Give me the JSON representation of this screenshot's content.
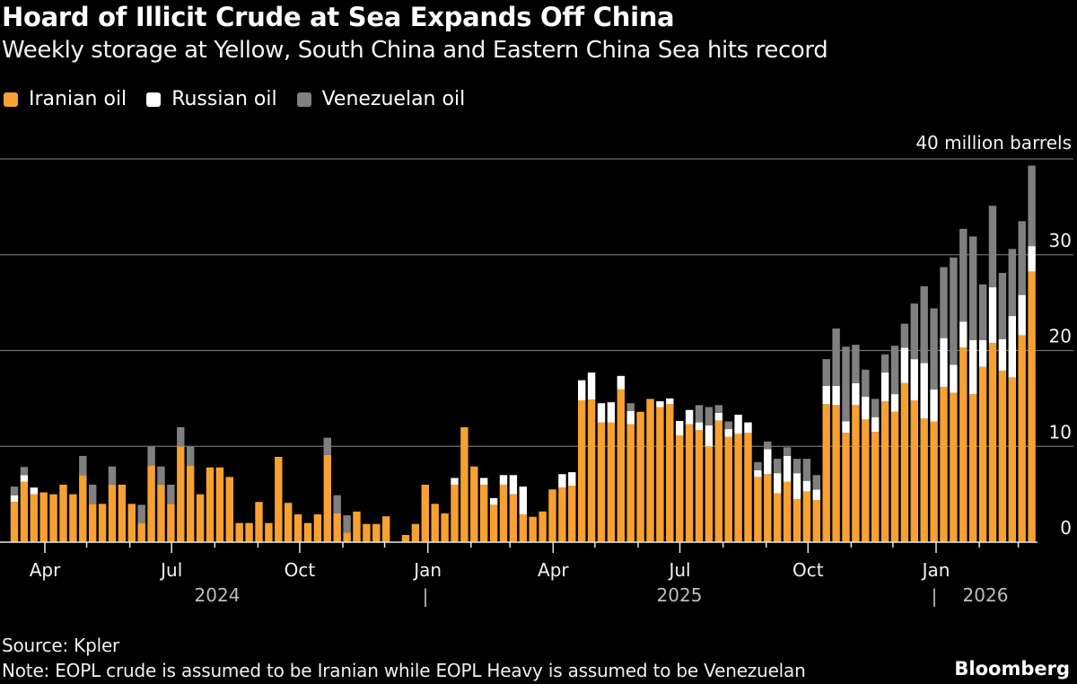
{
  "title": "Hoard of Illicit Crude at Sea Expands Off China",
  "subtitle": "Weekly storage at Yellow, South China and Eastern China Sea hits record",
  "source": "Source: Kpler",
  "note": "Note: EOPL crude is assumed to be Iranian while EOPL Heavy is assumed to be Venezuelan",
  "brand": "Bloomberg",
  "chart_data": {
    "type": "bar",
    "stacked": true,
    "frequency": "weekly",
    "ylabel": "40 million barrels",
    "ylim": [
      0,
      40
    ],
    "yticks": [
      0,
      10,
      20,
      30,
      40
    ],
    "ytick_labels": [
      "0",
      "10",
      "20",
      "30",
      "40 million barrels"
    ],
    "y_axis_side": "right",
    "grid": true,
    "legend_position": "top-left",
    "xtick_labels": [
      "Apr",
      "Jul",
      "Oct",
      "Jan",
      "Apr",
      "Jul",
      "Oct",
      "Jan"
    ],
    "year_labels": [
      "2024",
      "2025",
      "2026"
    ],
    "year_separator": "|",
    "series": [
      {
        "name": "Iranian oil",
        "color": "#f7a133",
        "values": [
          4.2,
          6.3,
          5.0,
          5.2,
          5.0,
          6.0,
          5.0,
          7.0,
          4.0,
          4.0,
          6.0,
          6.0,
          4.0,
          2.0,
          8.0,
          6.0,
          4.0,
          10.0,
          8.0,
          5.0,
          7.8,
          7.8,
          6.8,
          2.0,
          2.0,
          4.2,
          2.0,
          8.9,
          4.1,
          2.9,
          2.0,
          2.9,
          9.1,
          3.0,
          1.0,
          3.2,
          1.9,
          1.9,
          2.7,
          0,
          0.75,
          1.9,
          6.0,
          4.0,
          3.0,
          6.0,
          12.0,
          7.9,
          6.0,
          3.9,
          6.0,
          5.0,
          2.9,
          2.65,
          3.2,
          5.5,
          5.7,
          5.9,
          14.8,
          14.9,
          12.5,
          12.5,
          15.95,
          12.3,
          13.6,
          14.95,
          14.1,
          14.4,
          11.15,
          12.3,
          11.7,
          10.0,
          12.7,
          11.0,
          11.3,
          11.4,
          6.8,
          7.1,
          5.1,
          6.3,
          4.5,
          5.3,
          4.4,
          14.4,
          14.3,
          11.4,
          14.3,
          12.8,
          11.5,
          14.7,
          13.6,
          16.6,
          14.8,
          12.9,
          12.6,
          16.2,
          15.6,
          20.3,
          15.45,
          18.3,
          20.8,
          17.9,
          17.2,
          21.6,
          28.25
        ]
      },
      {
        "name": "Russian oil",
        "color": "#ffffff",
        "values": [
          0.7,
          0.7,
          0.7,
          0,
          0,
          0,
          0,
          0,
          0,
          0,
          0,
          0,
          0,
          0,
          0,
          0,
          0,
          0,
          0,
          0,
          0,
          0,
          0,
          0,
          0,
          0,
          0,
          0,
          0,
          0,
          0,
          0,
          0,
          0,
          0,
          0,
          0,
          0,
          0,
          0,
          0,
          0,
          0,
          0,
          0,
          0.7,
          0,
          0,
          0.7,
          0.7,
          1.0,
          2.0,
          2.9,
          0,
          0,
          0,
          1.4,
          1.4,
          2.1,
          2.8,
          2.0,
          2.1,
          1.4,
          1.4,
          0,
          0,
          0.6,
          0.6,
          1.5,
          1.5,
          0.8,
          2.2,
          0.8,
          0.8,
          2.0,
          1.1,
          0.7,
          2.6,
          2.1,
          2.7,
          2.7,
          1.1,
          1.1,
          1.9,
          2.0,
          1.2,
          2.3,
          2.4,
          1.55,
          3.0,
          1.85,
          3.7,
          4.3,
          5.8,
          3.35,
          5.1,
          2.9,
          2.7,
          5.65,
          2.8,
          5.8,
          3.3,
          6.4,
          4.2,
          2.65
        ]
      },
      {
        "name": "Venezuelan oil",
        "color": "#808080",
        "values": [
          0.9,
          0.85,
          0,
          0,
          0,
          0,
          0,
          2.0,
          2.0,
          0,
          1.9,
          0,
          0,
          1.9,
          2.0,
          1.9,
          2.0,
          2.0,
          2.0,
          0,
          0,
          0,
          0,
          0,
          0,
          0,
          0,
          0,
          0,
          0,
          0,
          0,
          1.8,
          1.9,
          1.8,
          0,
          0,
          0,
          0,
          0,
          0,
          0,
          0,
          0,
          0,
          0,
          0,
          0,
          0,
          0,
          0,
          0,
          0,
          0,
          0,
          0,
          0,
          0,
          0,
          0,
          0,
          0,
          0,
          0.8,
          0,
          0,
          0,
          0,
          0,
          0,
          1.8,
          1.9,
          0.8,
          0.8,
          0,
          0,
          0.85,
          0.8,
          1.5,
          0.9,
          1.5,
          2.3,
          1.5,
          2.8,
          6.0,
          7.8,
          4.0,
          2.8,
          1.9,
          1.9,
          5.05,
          2.5,
          5.8,
          8.0,
          8.45,
          7.4,
          11.2,
          9.7,
          10.8,
          5.8,
          8.5,
          6.9,
          7.0,
          7.7,
          8.4
        ]
      }
    ]
  }
}
